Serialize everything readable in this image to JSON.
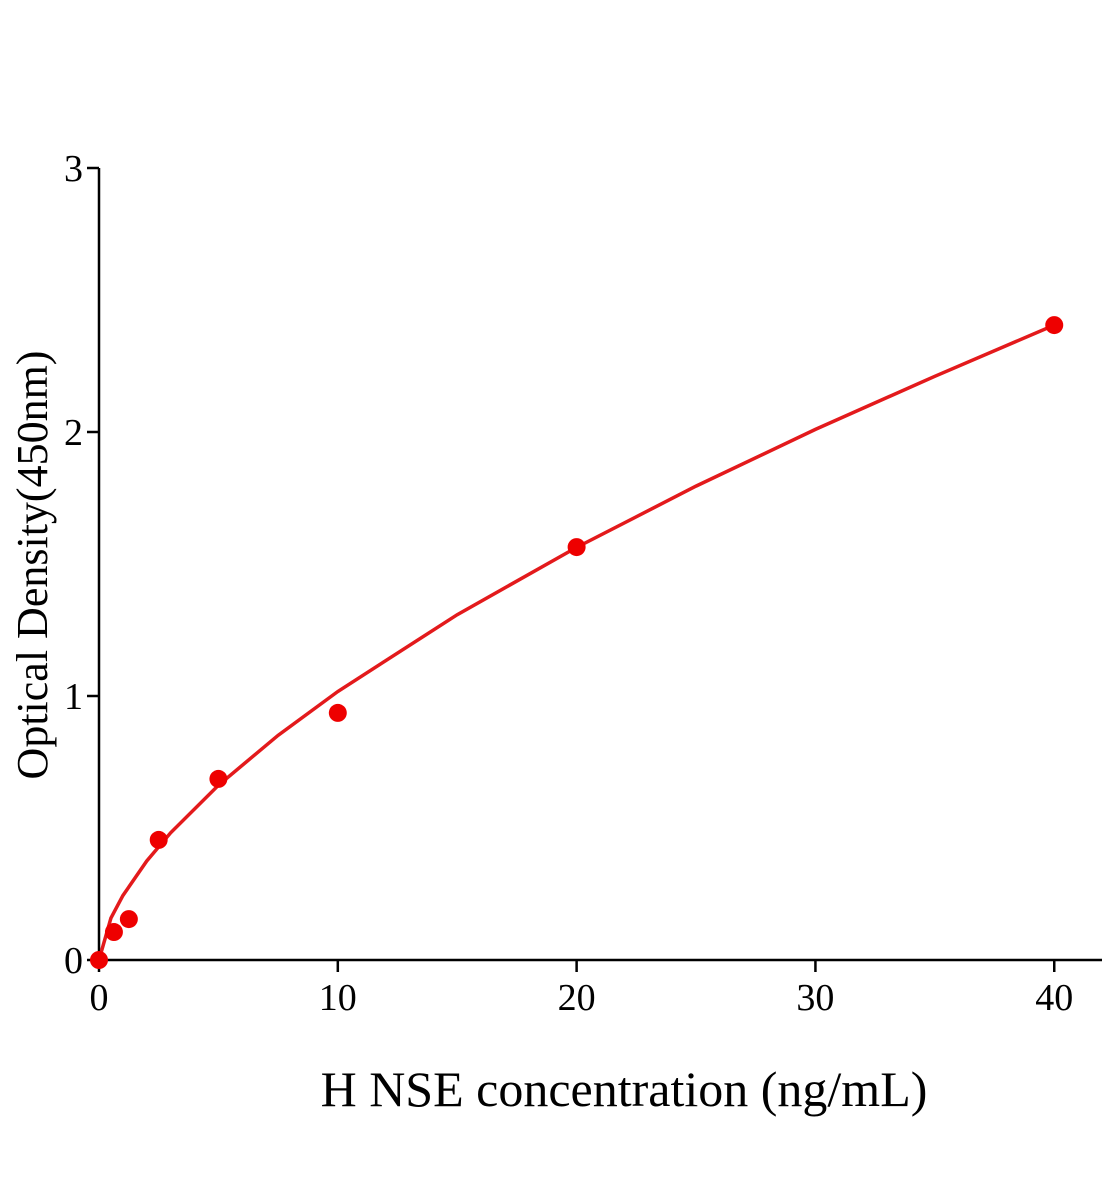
{
  "chart_data": {
    "type": "scatter",
    "x_label": "H NSE concentration (ng/mL)",
    "y_label": "Optical Density(450nm)",
    "x": [
      0,
      0.625,
      1.25,
      2.5,
      5,
      10,
      20,
      40
    ],
    "values": [
      0,
      0.106,
      0.155,
      0.455,
      0.686,
      0.936,
      1.564,
      2.405
    ],
    "color": "#ee0000",
    "curve": {
      "x": [
        0,
        0.5,
        1,
        2,
        3,
        5,
        7.5,
        10,
        15,
        20,
        25,
        30,
        35,
        40
      ],
      "values": [
        0,
        0.159,
        0.244,
        0.375,
        0.482,
        0.662,
        0.851,
        1.017,
        1.308,
        1.563,
        1.795,
        2.01,
        2.211,
        2.405
      ],
      "color": "#e31a1c"
    },
    "xlim": [
      0,
      42
    ],
    "xticks": [
      0,
      10,
      20,
      30,
      40
    ],
    "ylim": [
      0,
      3
    ],
    "yticks": [
      0,
      1,
      2,
      3
    ]
  }
}
